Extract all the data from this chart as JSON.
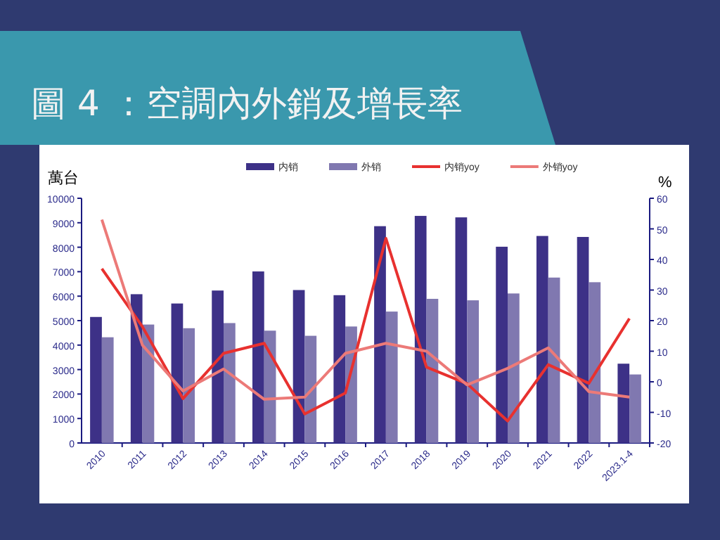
{
  "chart_data": {
    "type": "bar",
    "title": "圖 4 ：空調內外銷及增長率",
    "ylabel": "萬台",
    "y2label": "%",
    "categories": [
      "2010",
      "2011",
      "2012",
      "2013",
      "2014",
      "2015",
      "2016",
      "2017",
      "2018",
      "2019",
      "2020",
      "2021",
      "2022",
      "2023.1-4"
    ],
    "series": [
      {
        "name": "内销",
        "color": "#3d3187",
        "values": [
          5150,
          6080,
          5700,
          6230,
          7010,
          6250,
          6040,
          8860,
          9280,
          9220,
          8020,
          8460,
          8420,
          3240
        ]
      },
      {
        "name": "外销",
        "color": "#8078b0",
        "values": [
          4320,
          4840,
          4690,
          4900,
          4590,
          4380,
          4760,
          5370,
          5890,
          5830,
          6110,
          6760,
          6570,
          2800
        ]
      },
      {
        "name": "内销yoy",
        "type": "line",
        "axis": "y2",
        "color": "#e8312f",
        "values": [
          37,
          18,
          -5.5,
          9.3,
          12.6,
          -10.5,
          -3.7,
          46.9,
          4.8,
          -0.6,
          -12.8,
          5.6,
          -0.5,
          20.7
        ]
      },
      {
        "name": "外销yoy",
        "type": "line",
        "axis": "y2",
        "color": "#ec7a78",
        "values": [
          53,
          12,
          -3,
          4.2,
          -5.7,
          -5,
          9.3,
          12.6,
          10,
          -1,
          4.4,
          11.1,
          -3.2,
          -5
        ]
      }
    ],
    "ylim": [
      0,
      10000
    ],
    "yticks": [
      0,
      1000,
      2000,
      3000,
      4000,
      5000,
      6000,
      7000,
      8000,
      9000,
      10000
    ],
    "y2lim": [
      -20,
      60
    ],
    "y2ticks": [
      -20,
      -10,
      0,
      10,
      20,
      30,
      40,
      50,
      60
    ],
    "grid": false,
    "legend": "top",
    "marker": "none",
    "line_style": "solid"
  }
}
